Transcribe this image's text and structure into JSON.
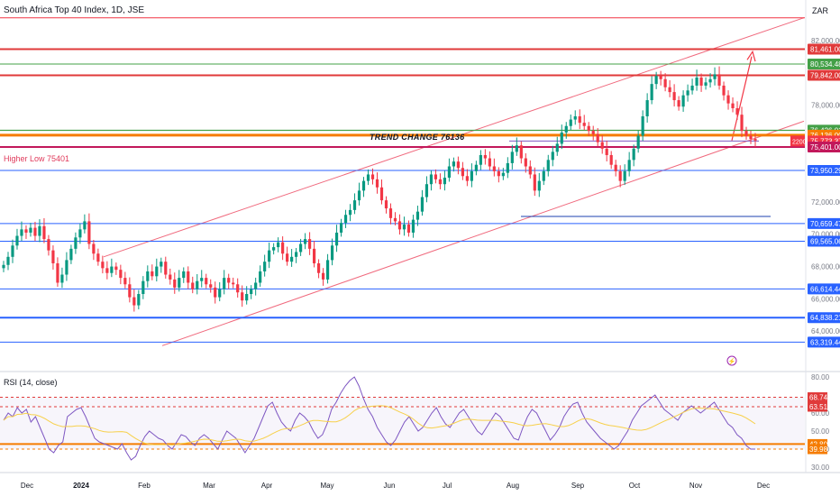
{
  "chart_data": {
    "type": "candlestick",
    "title": "South Africa Top 40 Index, 1D, JSE",
    "currency": "ZAR",
    "ylim": [
      61500,
      84500
    ],
    "y_ticks": [
      {
        "v": 82000,
        "label": "82,000.00"
      },
      {
        "v": 78000,
        "label": "78,000.00"
      },
      {
        "v": 72000,
        "label": "72,000.00"
      },
      {
        "v": 70000,
        "label": "70,000.00"
      },
      {
        "v": 68000,
        "label": "68,000.00"
      },
      {
        "v": 66000,
        "label": "66,000.00"
      },
      {
        "v": 64000,
        "label": "64,000.00"
      }
    ],
    "x_ticks": [
      "Dec",
      "2024",
      "Feb",
      "Mar",
      "Apr",
      "May",
      "Jun",
      "Jul",
      "Aug",
      "Sep",
      "Oct",
      "Nov",
      "Dec"
    ],
    "levels": [
      {
        "price": 83400,
        "label": "",
        "color": "#f23645",
        "width": 1
      },
      {
        "price": 81461,
        "label": "81,461.00",
        "color": "#e03a3a",
        "width": 2
      },
      {
        "price": 80534.48,
        "label": "80,534.48",
        "color": "#43a047",
        "width": 1
      },
      {
        "price": 79842,
        "label": "79,842.00",
        "color": "#e03a3a",
        "width": 2
      },
      {
        "price": 76442.3,
        "label": "76,442.30",
        "color": "#43a047",
        "width": 1
      },
      {
        "price": 76426.01,
        "label": "76,426.01",
        "color": "#43a047",
        "width": 1
      },
      {
        "price": 76136,
        "label": "76,136.00",
        "color": "#f57c00",
        "width": 3
      },
      {
        "price": 75773.37,
        "label": "75,773.37",
        "color": "#f23645",
        "width": 0
      },
      {
        "price": 75401,
        "label": "75,401.00",
        "color": "#c2185b",
        "width": 2
      },
      {
        "price": 73950.29,
        "label": "73,950.29",
        "color": "#2962ff",
        "width": 1
      },
      {
        "price": 70659.47,
        "label": "70,659.47",
        "color": "#2962ff",
        "width": 1
      },
      {
        "price": 69565.06,
        "label": "69,565.06",
        "color": "#2962ff",
        "width": 1
      },
      {
        "price": 66614.44,
        "label": "66,614.44",
        "color": "#2962ff",
        "width": 1
      },
      {
        "price": 64838.21,
        "label": "64,838.21",
        "color": "#2962ff",
        "width": 2
      },
      {
        "price": 63319.44,
        "label": "63,319.44",
        "color": "#2962ff",
        "width": 1
      }
    ],
    "price_tag": "2200",
    "annotations": {
      "trend_change": "TREND CHANGE 76136",
      "higher_low": "Higher Low 75401"
    },
    "candles_close": [
      68100,
      68600,
      69300,
      69900,
      70300,
      70100,
      70400,
      69900,
      70500,
      69700,
      69000,
      68200,
      67000,
      67500,
      68400,
      69100,
      69800,
      70300,
      70800,
      69400,
      68800,
      68300,
      67900,
      67600,
      68000,
      67800,
      67300,
      66900,
      66100,
      65600,
      66300,
      67100,
      67700,
      67400,
      68000,
      68300,
      67500,
      67200,
      66700,
      67300,
      67700,
      67000,
      66600,
      67100,
      67300,
      66900,
      66700,
      66100,
      66600,
      67300,
      67000,
      66900,
      66400,
      65900,
      66300,
      66600,
      67000,
      67700,
      68300,
      69000,
      69200,
      69500,
      68800,
      68300,
      68600,
      68900,
      69400,
      69700,
      69100,
      68200,
      67600,
      67200,
      68400,
      69300,
      70100,
      70700,
      71200,
      71500,
      72100,
      72700,
      73300,
      73700,
      73400,
      72900,
      72100,
      71600,
      71000,
      70800,
      70300,
      70600,
      70100,
      70900,
      71400,
      72300,
      73100,
      73700,
      73400,
      73100,
      73500,
      74200,
      74500,
      74100,
      73600,
      73300,
      73900,
      74300,
      74900,
      74700,
      74200,
      73900,
      73600,
      73800,
      74400,
      75100,
      75500,
      74700,
      74200,
      73700,
      72700,
      73300,
      73900,
      74600,
      75100,
      75600,
      76300,
      76700,
      77100,
      77300,
      76900,
      76700,
      76400,
      76200,
      75700,
      75300,
      74900,
      74300,
      73900,
      73300,
      73900,
      74600,
      75300,
      76100,
      77300,
      78300,
      79300,
      79800,
      79600,
      79100,
      78800,
      78300,
      77900,
      78600,
      78900,
      79200,
      79700,
      79200,
      79400,
      79600,
      79900,
      79200,
      78600,
      78100,
      77800,
      77400,
      76400,
      76100,
      75900,
      75800
    ],
    "rsi": {
      "title": "RSI (14, close)",
      "ylim": [
        28,
        82
      ],
      "ticks": [
        {
          "v": 80,
          "label": "80.00"
        },
        {
          "v": 60,
          "label": "60.00"
        },
        {
          "v": 50,
          "label": "50.00"
        },
        {
          "v": 40,
          "label": "40.00"
        },
        {
          "v": 30,
          "label": "30.00"
        }
      ],
      "tags": [
        {
          "v": 68.74,
          "label": "68.74",
          "color": "#e03a3a"
        },
        {
          "v": 63.51,
          "label": "63.51",
          "color": "#e03a3a"
        },
        {
          "v": 42.8,
          "label": "42.80",
          "color": "#f57c00"
        },
        {
          "v": 39.98,
          "label": "39.98",
          "color": "#f57c00"
        }
      ],
      "values": [
        56,
        60,
        58,
        63,
        60,
        62,
        55,
        58,
        52,
        46,
        40,
        38,
        42,
        44,
        58,
        60,
        62,
        63,
        58,
        52,
        46,
        44,
        43,
        42,
        41,
        40,
        43,
        38,
        34,
        36,
        42,
        47,
        50,
        48,
        46,
        45,
        42,
        40,
        44,
        48,
        47,
        44,
        42,
        46,
        48,
        46,
        43,
        40,
        45,
        50,
        48,
        46,
        42,
        38,
        42,
        46,
        52,
        58,
        64,
        66,
        60,
        55,
        52,
        50,
        56,
        60,
        58,
        55,
        50,
        46,
        48,
        54,
        62,
        66,
        71,
        75,
        78,
        80,
        75,
        68,
        62,
        58,
        52,
        48,
        44,
        42,
        45,
        50,
        55,
        58,
        54,
        50,
        52,
        56,
        60,
        63,
        58,
        54,
        52,
        56,
        60,
        62,
        58,
        54,
        50,
        48,
        52,
        56,
        60,
        58,
        54,
        50,
        46,
        45,
        52,
        58,
        62,
        60,
        55,
        50,
        45,
        48,
        52,
        58,
        62,
        65,
        66,
        60,
        55,
        52,
        49,
        46,
        44,
        42,
        40,
        42,
        46,
        50,
        56,
        60,
        64,
        66,
        68,
        70,
        66,
        62,
        60,
        58,
        56,
        60,
        62,
        64,
        62,
        60,
        62,
        64,
        66,
        62,
        58,
        54,
        52,
        48,
        46,
        42,
        40,
        40
      ]
    }
  }
}
